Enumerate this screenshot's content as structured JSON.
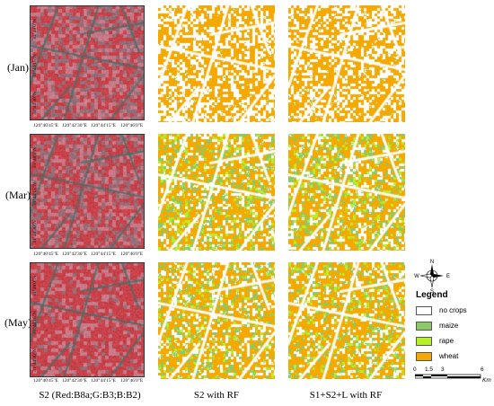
{
  "row_labels": [
    "(Jan)",
    "(Mar)",
    "(May)"
  ],
  "column_titles": [
    "S2 (Red:B8a;G:B3;B:B2)",
    "S2 with RF",
    "S1+S2+L with RF"
  ],
  "lon_labels": [
    "120°40'45\"E",
    "120°42'30\"E",
    "120°44'15\"E",
    "120°46'0\"E"
  ],
  "lat_labels": [
    "31°48'0\"N",
    "31°46'15\"N",
    "31°44'30\"N"
  ],
  "compass": {
    "n": "N",
    "s": "S",
    "e": "E",
    "w": "W"
  },
  "legend": {
    "title": "Legend",
    "items": [
      {
        "label": "no crops",
        "color": "#ffffff"
      },
      {
        "label": "maize",
        "color": "#8cc866"
      },
      {
        "label": "rape",
        "color": "#b6f02a"
      },
      {
        "label": "wheat",
        "color": "#f5a800"
      }
    ]
  },
  "scale_bar": {
    "ticks": [
      "0",
      "1.5",
      "3",
      "6"
    ],
    "unit": "Km"
  },
  "colors": {
    "no_crops": "#ffffff",
    "maize": "#8cc866",
    "rape": "#b6f02a",
    "wheat": "#f5a800",
    "falsecolor_red": "#c8424a",
    "falsecolor_pink": "#c87a88",
    "falsecolor_road": "#4a6a6a"
  }
}
